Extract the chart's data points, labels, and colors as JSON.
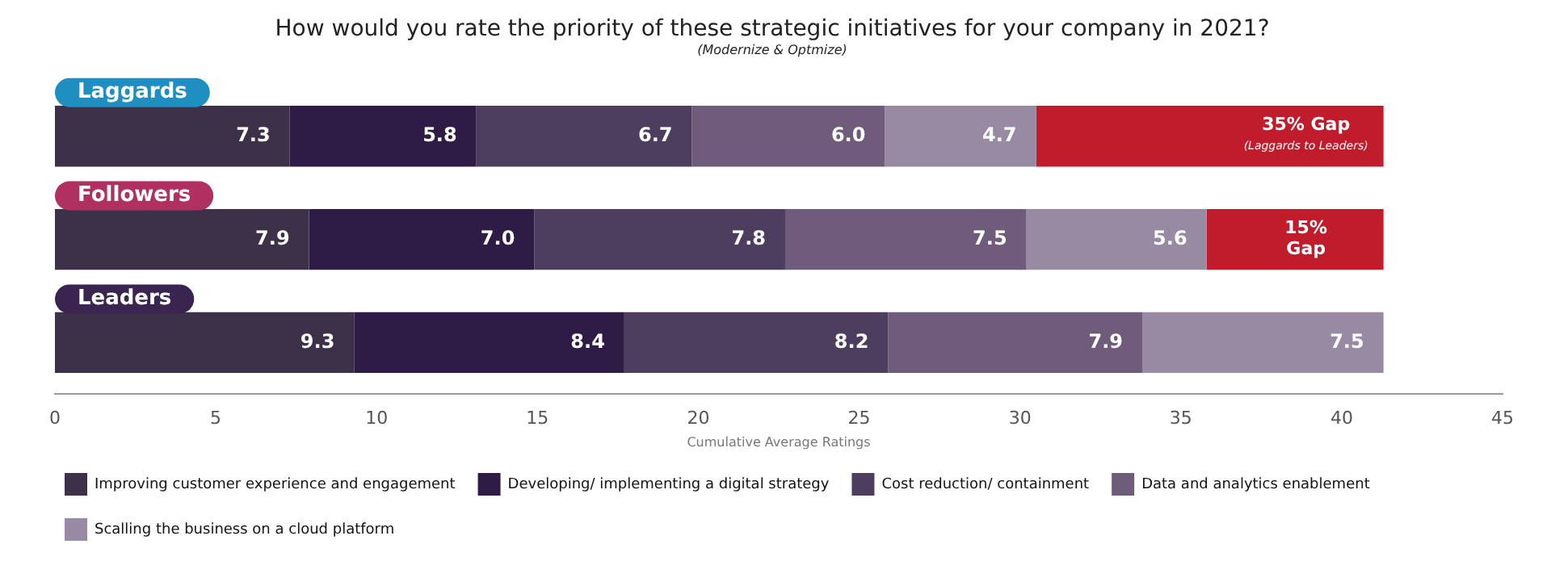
{
  "chart_data": {
    "type": "bar",
    "orientation": "horizontal",
    "stacked": true,
    "title": "How would you rate the priority of these strategic initiatives for your company in 2021?",
    "subtitle": "(Modernize & Optmize)",
    "xlabel": "Cumulative Average Ratings",
    "categories": [
      "Laggards",
      "Followers",
      "Leaders"
    ],
    "series": [
      {
        "name": "Improving customer experience and engagement",
        "color": "#3d3049",
        "values": [
          7.3,
          7.9,
          9.3
        ],
        "value_labels": [
          "7.3",
          "7.9",
          "9.3"
        ]
      },
      {
        "name": "Developing/ implementing a digital strategy",
        "color": "#2e1c47",
        "values": [
          5.8,
          7.0,
          8.4
        ],
        "value_labels": [
          "5.8",
          "7.0",
          "8.4"
        ]
      },
      {
        "name": "Cost reduction/ containment",
        "color": "#4d3d5e",
        "values": [
          6.7,
          7.8,
          8.2
        ],
        "value_labels": [
          "6.7",
          "7.8",
          "8.2"
        ]
      },
      {
        "name": "Data and analytics enablement",
        "color": "#6e5c7a",
        "values": [
          6.0,
          7.5,
          7.9
        ],
        "value_labels": [
          "6.0",
          "7.5",
          "7.9"
        ]
      },
      {
        "name": "Scalling the business on a cloud platform",
        "color": "#988aa3",
        "values": [
          4.7,
          5.6,
          7.5
        ],
        "value_labels": [
          "4.7",
          "5.6",
          "7.5"
        ]
      },
      {
        "color": "#c01c2c",
        "values": [
          10.8,
          5.5,
          null
        ],
        "value_labels": [
          null,
          null,
          null
        ]
      }
    ],
    "annotations": [
      "35% Gap\n(Laggards to Leaders)",
      "15%\nGap"
    ],
    "xlim": [
      0,
      45
    ],
    "xticks": [
      0,
      5,
      10,
      15,
      20,
      25,
      30,
      35,
      40,
      45
    ],
    "grid": false,
    "legend": "bottom",
    "tick_labels": "x",
    "data_labels": true
  }
}
